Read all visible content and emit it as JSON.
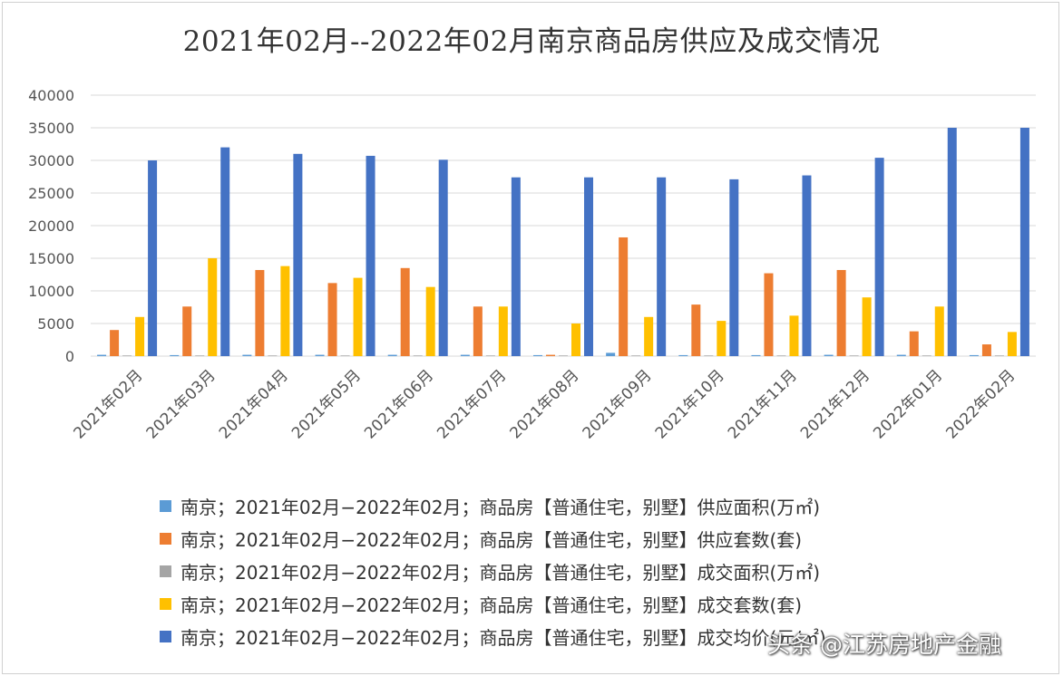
{
  "chart_data": {
    "type": "bar",
    "title": "2021年02月--2022年02月南京商品房供应及成交情况",
    "categories": [
      "2021年02月",
      "2021年03月",
      "2021年04月",
      "2021年05月",
      "2021年06月",
      "2021年07月",
      "2021年08月",
      "2021年09月",
      "2021年10月",
      "2021年11月",
      "2021年12月",
      "2022年01月",
      "2022年02月"
    ],
    "ylim": [
      0,
      40000
    ],
    "yticks": [
      "0",
      "5000",
      "10000",
      "15000",
      "20000",
      "25000",
      "30000",
      "35000",
      "40000"
    ],
    "grid": true,
    "legend_position": "bottom",
    "series": [
      {
        "name": "南京；2021年02月−2022年02月；商品房【普通住宅，别墅】供应面积(万㎡)",
        "color": "#5b9bd5",
        "values": [
          200,
          150,
          200,
          200,
          200,
          200,
          150,
          500,
          150,
          150,
          200,
          200,
          150
        ]
      },
      {
        "name": "南京；2021年02月−2022年02月；商品房【普通住宅，别墅】供应套数(套)",
        "color": "#ed7d31",
        "values": [
          4000,
          7600,
          13200,
          11200,
          13500,
          7600,
          200,
          18200,
          7900,
          12700,
          13200,
          3800,
          1800
        ]
      },
      {
        "name": "南京；2021年02月−2022年02月；商品房【普通住宅，别墅】成交面积(万㎡)",
        "color": "#a5a5a5",
        "values": [
          100,
          100,
          100,
          100,
          100,
          100,
          100,
          100,
          100,
          100,
          100,
          100,
          100
        ]
      },
      {
        "name": "南京；2021年02月−2022年02月；商品房【普通住宅，别墅】成交套数(套)",
        "color": "#ffc000",
        "values": [
          6000,
          15000,
          13800,
          12000,
          10600,
          7600,
          5000,
          6000,
          5400,
          6200,
          9000,
          7600,
          3700
        ]
      },
      {
        "name": "南京；2021年02月−2022年02月；商品房【普通住宅，别墅】成交均价(元/㎡)",
        "color": "#4472c4",
        "values": [
          30000,
          32000,
          31000,
          30700,
          30100,
          27400,
          27400,
          27400,
          27100,
          27700,
          30400,
          35000,
          35000
        ]
      }
    ]
  },
  "watermark": "头条 @江苏房地产金融"
}
